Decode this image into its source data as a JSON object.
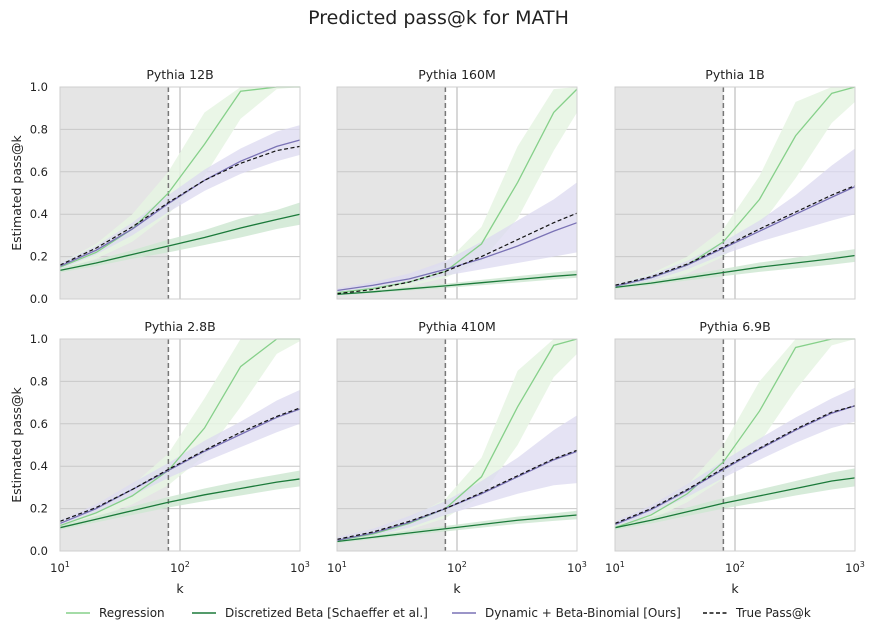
{
  "figure_title": "Predicted pass@k for MATH",
  "colors": {
    "regression": "#86d08a",
    "regression_band": "#e6f5e3",
    "beta": "#1b7a3a",
    "beta_band": "#cfe8d2",
    "dynamic": "#7a72b5",
    "dynamic_band": "#dcd9f0",
    "true": "#111111",
    "shade": "#e5e5e5",
    "grid": "#c8c8c8",
    "vline_dashed": "#777777",
    "vline_solid": "#bdbdbd"
  },
  "legend": {
    "regression": "Regression",
    "beta": "Discretized Beta [Schaeffer et al.]",
    "dynamic": "Dynamic + Beta-Binomial [Ours]",
    "true": "True Pass@k"
  },
  "chart_data": {
    "type": "line",
    "title": "Predicted pass@k for MATH",
    "xlabel": "k",
    "ylabel": "Estimated pass@k",
    "xscale": "log",
    "xlim": [
      10,
      1000
    ],
    "ylim": [
      0,
      1
    ],
    "x_ticks": [
      {
        "base": "10",
        "exp": "1"
      },
      {
        "base": "10",
        "exp": "2"
      },
      {
        "base": "10",
        "exp": "3"
      }
    ],
    "y_ticks": [
      "0.0",
      "0.2",
      "0.4",
      "0.6",
      "0.8",
      "1.0"
    ],
    "grid": true,
    "legend_position": "bottom",
    "shaded_region_k": [
      10,
      80
    ],
    "dashed_vline_k": 80,
    "solid_vline_k": 100,
    "x_samples": [
      10,
      20,
      40,
      80,
      160,
      320,
      640,
      1000
    ],
    "panels": [
      {
        "title": "Pythia 12B",
        "series": {
          "regression": [
            0.15,
            0.22,
            0.33,
            0.5,
            0.73,
            0.98,
            1.0,
            1.0
          ],
          "regression_band": {
            "lo": [
              0.14,
              0.19,
              0.27,
              0.4,
              0.58,
              0.85,
              0.99,
              1.0
            ],
            "hi": [
              0.17,
              0.26,
              0.4,
              0.6,
              0.88,
              1.0,
              1.0,
              1.0
            ]
          },
          "beta": [
            0.135,
            0.17,
            0.21,
            0.25,
            0.29,
            0.335,
            0.375,
            0.4
          ],
          "beta_band": {
            "lo": [
              0.125,
              0.155,
              0.19,
              0.22,
              0.255,
              0.29,
              0.33,
              0.35
            ],
            "hi": [
              0.145,
              0.185,
              0.23,
              0.28,
              0.325,
              0.38,
              0.42,
              0.455
            ]
          },
          "dynamic": [
            0.155,
            0.23,
            0.33,
            0.45,
            0.56,
            0.65,
            0.72,
            0.75
          ],
          "dynamic_band": {
            "lo": [
              0.14,
              0.21,
              0.3,
              0.41,
              0.51,
              0.59,
              0.65,
              0.68
            ],
            "hi": [
              0.17,
              0.25,
              0.36,
              0.49,
              0.61,
              0.71,
              0.79,
              0.82
            ]
          },
          "true": [
            0.16,
            0.24,
            0.34,
            0.455,
            0.56,
            0.64,
            0.7,
            0.72
          ]
        }
      },
      {
        "title": "Pythia 160M",
        "series": {
          "regression": [
            0.03,
            0.05,
            0.08,
            0.13,
            0.26,
            0.55,
            0.88,
            0.99
          ],
          "regression_band": {
            "lo": [
              0.02,
              0.04,
              0.06,
              0.1,
              0.18,
              0.38,
              0.7,
              0.88
            ],
            "hi": [
              0.04,
              0.065,
              0.1,
              0.17,
              0.34,
              0.72,
              0.99,
              1.0
            ]
          },
          "beta": [
            0.022,
            0.034,
            0.048,
            0.062,
            0.077,
            0.092,
            0.107,
            0.115
          ],
          "beta_band": {
            "lo": [
              0.018,
              0.028,
              0.04,
              0.052,
              0.065,
              0.078,
              0.092,
              0.1
            ],
            "hi": [
              0.026,
              0.04,
              0.056,
              0.072,
              0.09,
              0.108,
              0.125,
              0.135
            ]
          },
          "dynamic": [
            0.04,
            0.065,
            0.095,
            0.14,
            0.19,
            0.25,
            0.32,
            0.36
          ],
          "dynamic_band": {
            "lo": [
              0.03,
              0.05,
              0.075,
              0.11,
              0.14,
              0.17,
              0.2,
              0.22
            ],
            "hi": [
              0.05,
              0.08,
              0.12,
              0.18,
              0.27,
              0.37,
              0.47,
              0.55
            ]
          },
          "true": [
            0.025,
            0.045,
            0.08,
            0.13,
            0.2,
            0.28,
            0.36,
            0.405
          ]
        }
      },
      {
        "title": "Pythia 1B",
        "series": {
          "regression": [
            0.06,
            0.1,
            0.16,
            0.27,
            0.47,
            0.77,
            0.97,
            1.0
          ],
          "regression_band": {
            "lo": [
              0.05,
              0.08,
              0.12,
              0.2,
              0.34,
              0.57,
              0.83,
              0.93
            ],
            "hi": [
              0.07,
              0.12,
              0.2,
              0.33,
              0.58,
              0.93,
              1.0,
              1.0
            ]
          },
          "beta": [
            0.055,
            0.075,
            0.1,
            0.125,
            0.15,
            0.17,
            0.19,
            0.205
          ],
          "beta_band": {
            "lo": [
              0.048,
              0.065,
              0.087,
              0.108,
              0.128,
              0.145,
              0.162,
              0.175
            ],
            "hi": [
              0.062,
              0.085,
              0.113,
              0.142,
              0.172,
              0.195,
              0.22,
              0.235
            ]
          },
          "dynamic": [
            0.06,
            0.1,
            0.16,
            0.24,
            0.32,
            0.4,
            0.48,
            0.53
          ],
          "dynamic_band": {
            "lo": [
              0.05,
              0.085,
              0.14,
              0.21,
              0.27,
              0.32,
              0.37,
              0.4
            ],
            "hi": [
              0.07,
              0.115,
              0.18,
              0.27,
              0.37,
              0.49,
              0.63,
              0.71
            ]
          },
          "true": [
            0.065,
            0.105,
            0.165,
            0.245,
            0.33,
            0.41,
            0.49,
            0.535
          ]
        }
      },
      {
        "title": "Pythia 2.8B",
        "series": {
          "regression": [
            0.12,
            0.18,
            0.26,
            0.38,
            0.58,
            0.87,
            1.0,
            1.0
          ],
          "regression_band": {
            "lo": [
              0.11,
              0.16,
              0.22,
              0.31,
              0.45,
              0.68,
              0.93,
              0.99
            ],
            "hi": [
              0.135,
              0.205,
              0.31,
              0.46,
              0.72,
              1.0,
              1.0,
              1.0
            ]
          },
          "beta": [
            0.11,
            0.15,
            0.19,
            0.23,
            0.265,
            0.295,
            0.325,
            0.34
          ],
          "beta_band": {
            "lo": [
              0.1,
              0.135,
              0.17,
              0.205,
              0.235,
              0.262,
              0.29,
              0.305
            ],
            "hi": [
              0.12,
              0.165,
              0.21,
              0.255,
              0.295,
              0.33,
              0.36,
              0.38
            ]
          },
          "dynamic": [
            0.13,
            0.2,
            0.29,
            0.38,
            0.47,
            0.55,
            0.63,
            0.67
          ],
          "dynamic_band": {
            "lo": [
              0.115,
              0.18,
              0.26,
              0.345,
              0.42,
              0.49,
              0.56,
              0.6
            ],
            "hi": [
              0.145,
              0.22,
              0.32,
              0.415,
              0.52,
              0.61,
              0.71,
              0.76
            ]
          },
          "true": [
            0.14,
            0.205,
            0.29,
            0.385,
            0.475,
            0.56,
            0.635,
            0.675
          ]
        }
      },
      {
        "title": "Pythia 410M",
        "series": {
          "regression": [
            0.05,
            0.08,
            0.13,
            0.2,
            0.35,
            0.68,
            0.97,
            1.0
          ],
          "regression_band": {
            "lo": [
              0.04,
              0.065,
              0.1,
              0.155,
              0.26,
              0.5,
              0.82,
              0.93
            ],
            "hi": [
              0.06,
              0.095,
              0.155,
              0.245,
              0.44,
              0.85,
              1.0,
              1.0
            ]
          },
          "beta": [
            0.045,
            0.065,
            0.085,
            0.105,
            0.125,
            0.145,
            0.16,
            0.17
          ],
          "beta_band": {
            "lo": [
              0.038,
              0.056,
              0.074,
              0.092,
              0.11,
              0.128,
              0.142,
              0.15
            ],
            "hi": [
              0.052,
              0.074,
              0.096,
              0.118,
              0.14,
              0.162,
              0.178,
              0.19
            ]
          },
          "dynamic": [
            0.05,
            0.085,
            0.135,
            0.2,
            0.27,
            0.35,
            0.43,
            0.47
          ],
          "dynamic_band": {
            "lo": [
              0.04,
              0.07,
              0.11,
              0.17,
              0.22,
              0.27,
              0.31,
              0.32
            ],
            "hi": [
              0.065,
              0.105,
              0.165,
              0.235,
              0.33,
              0.44,
              0.57,
              0.64
            ]
          },
          "true": [
            0.055,
            0.09,
            0.14,
            0.2,
            0.275,
            0.355,
            0.435,
            0.475
          ]
        }
      },
      {
        "title": "Pythia 6.9B",
        "series": {
          "regression": [
            0.11,
            0.17,
            0.27,
            0.42,
            0.66,
            0.96,
            1.0,
            1.0
          ],
          "regression_band": {
            "lo": [
              0.1,
              0.15,
              0.23,
              0.34,
              0.51,
              0.76,
              0.97,
              1.0
            ],
            "hi": [
              0.125,
              0.195,
              0.31,
              0.5,
              0.8,
              1.0,
              1.0,
              1.0
            ]
          },
          "beta": [
            0.11,
            0.145,
            0.185,
            0.225,
            0.26,
            0.295,
            0.33,
            0.345
          ],
          "beta_band": {
            "lo": [
              0.1,
              0.13,
              0.165,
              0.2,
              0.23,
              0.262,
              0.29,
              0.305
            ],
            "hi": [
              0.12,
              0.16,
              0.205,
              0.25,
              0.29,
              0.33,
              0.37,
              0.39
            ]
          },
          "dynamic": [
            0.125,
            0.195,
            0.285,
            0.385,
            0.48,
            0.57,
            0.65,
            0.685
          ],
          "dynamic_band": {
            "lo": [
              0.11,
              0.175,
              0.255,
              0.345,
              0.43,
              0.51,
              0.58,
              0.61
            ],
            "hi": [
              0.14,
              0.215,
              0.315,
              0.425,
              0.53,
              0.63,
              0.72,
              0.77
            ]
          },
          "true": [
            0.13,
            0.2,
            0.29,
            0.39,
            0.485,
            0.575,
            0.655,
            0.685
          ]
        }
      }
    ]
  }
}
